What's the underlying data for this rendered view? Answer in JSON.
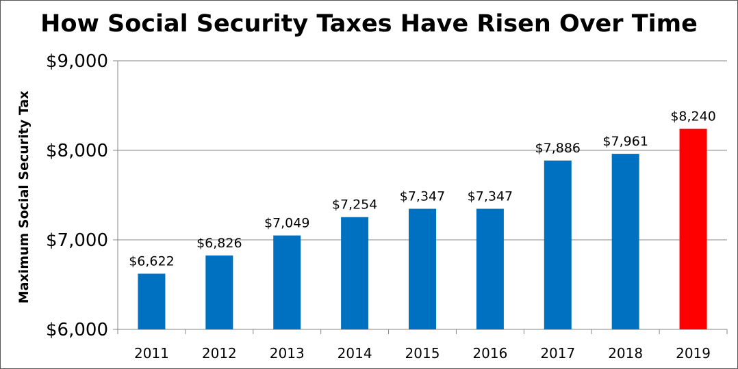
{
  "chart_data": {
    "type": "bar",
    "title": "How Social Security Taxes Have Risen Over Time",
    "xlabel": "",
    "ylabel": "Maximum Social Security Tax",
    "categories": [
      "2011",
      "2012",
      "2013",
      "2014",
      "2015",
      "2016",
      "2017",
      "2018",
      "2019"
    ],
    "values": [
      6622,
      6826,
      7049,
      7254,
      7347,
      7347,
      7886,
      7961,
      8240
    ],
    "data_labels": [
      "$6,622",
      "$6,826",
      "$7,049",
      "$7,254",
      "$7,347",
      "$7,347",
      "$7,886",
      "$7,961",
      "$8,240"
    ],
    "ylim": [
      6000,
      9000
    ],
    "yticks": [
      6000,
      7000,
      8000,
      9000
    ],
    "ytick_labels": [
      "$6,000",
      "$7,000",
      "$8,000",
      "$9,000"
    ],
    "grid": true,
    "legend": "none",
    "colors": {
      "default": "#0070C0",
      "highlight": "#FF0000",
      "highlight_category": "2019"
    }
  }
}
